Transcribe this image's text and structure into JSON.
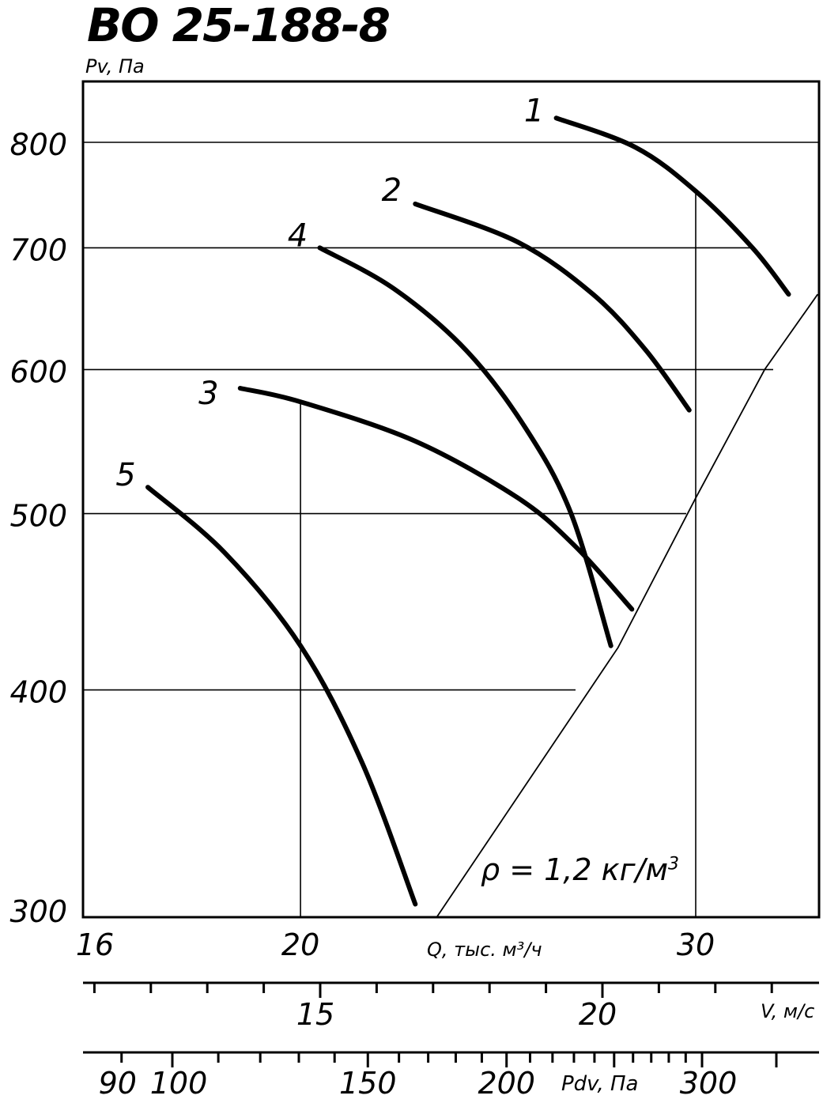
{
  "title": "ВО 25-188-8",
  "ylabel": "Pv, Па",
  "xlabel": "Q, тыс. м³/ч",
  "density_label": "ρ = 1,2 кг/м",
  "density_exp": "3",
  "chart_data": {
    "type": "line",
    "title": "ВО 25-188-8",
    "ylabel": "Pv, Па",
    "xlabel": "Q, тыс. м³/ч",
    "yscale": "log",
    "xscale": "log",
    "xlim": [
      16,
      34
    ],
    "ylim": [
      300,
      850
    ],
    "yticks": [
      300,
      400,
      500,
      600,
      700,
      800
    ],
    "yticklabels": [
      "300",
      "400",
      "500",
      "600",
      "700",
      "800"
    ],
    "xticks": [
      16,
      20,
      30
    ],
    "xticklabels": [
      "16",
      "20",
      "30"
    ],
    "grid": true,
    "series": [
      {
        "name": "1",
        "x": [
          26.0,
          28.2,
          30.0,
          31.8,
          33.0
        ],
        "y": [
          825,
          795,
          752,
          700,
          660
        ]
      },
      {
        "name": "2",
        "x": [
          22.5,
          25.0,
          27.0,
          28.5,
          29.8
        ],
        "y": [
          740,
          705,
          660,
          615,
          570
        ]
      },
      {
        "name": "4",
        "x": [
          20.4,
          22.0,
          23.7,
          25.2,
          26.4,
          27.5
        ],
        "y": [
          700,
          665,
          615,
          557,
          500,
          423
        ]
      },
      {
        "name": "3",
        "x": [
          18.8,
          20.0,
          22.5,
          25.0,
          26.5,
          28.1
        ],
        "y": [
          586,
          576,
          548,
          510,
          480,
          443
        ]
      },
      {
        "name": "5",
        "x": [
          17.1,
          18.5,
          20.0,
          21.3,
          22.5
        ],
        "y": [
          517,
          476,
          423,
          365,
          305
        ]
      },
      {
        "name": "",
        "x": [
          23.0,
          27.7,
          30.0,
          32.2,
          34.0
        ],
        "y": [
          300,
          422,
          510,
          600,
          660
        ]
      }
    ]
  },
  "axes": {
    "v_label": "V, м/с",
    "v_labels": [
      {
        "value": 15,
        "text": "15"
      },
      {
        "value": 20,
        "text": "20"
      }
    ],
    "v_ticks": [
      10,
      11,
      12,
      13,
      14,
      15,
      16,
      17,
      18,
      19,
      20,
      21,
      22,
      23,
      24,
      25,
      26
    ],
    "pdv_label": "Pdv, Па",
    "pdv_labels": [
      {
        "value": 90,
        "text": "90"
      },
      {
        "value": 100,
        "text": "100"
      },
      {
        "value": 150,
        "text": "150"
      },
      {
        "value": 200,
        "text": "200"
      },
      {
        "value": 300,
        "text": "300"
      }
    ],
    "pdv_ticks": [
      80,
      90,
      100,
      110,
      120,
      130,
      140,
      150,
      160,
      170,
      180,
      190,
      200,
      210,
      220,
      230,
      240,
      250,
      260,
      270,
      280,
      290,
      300,
      350,
      400
    ]
  }
}
